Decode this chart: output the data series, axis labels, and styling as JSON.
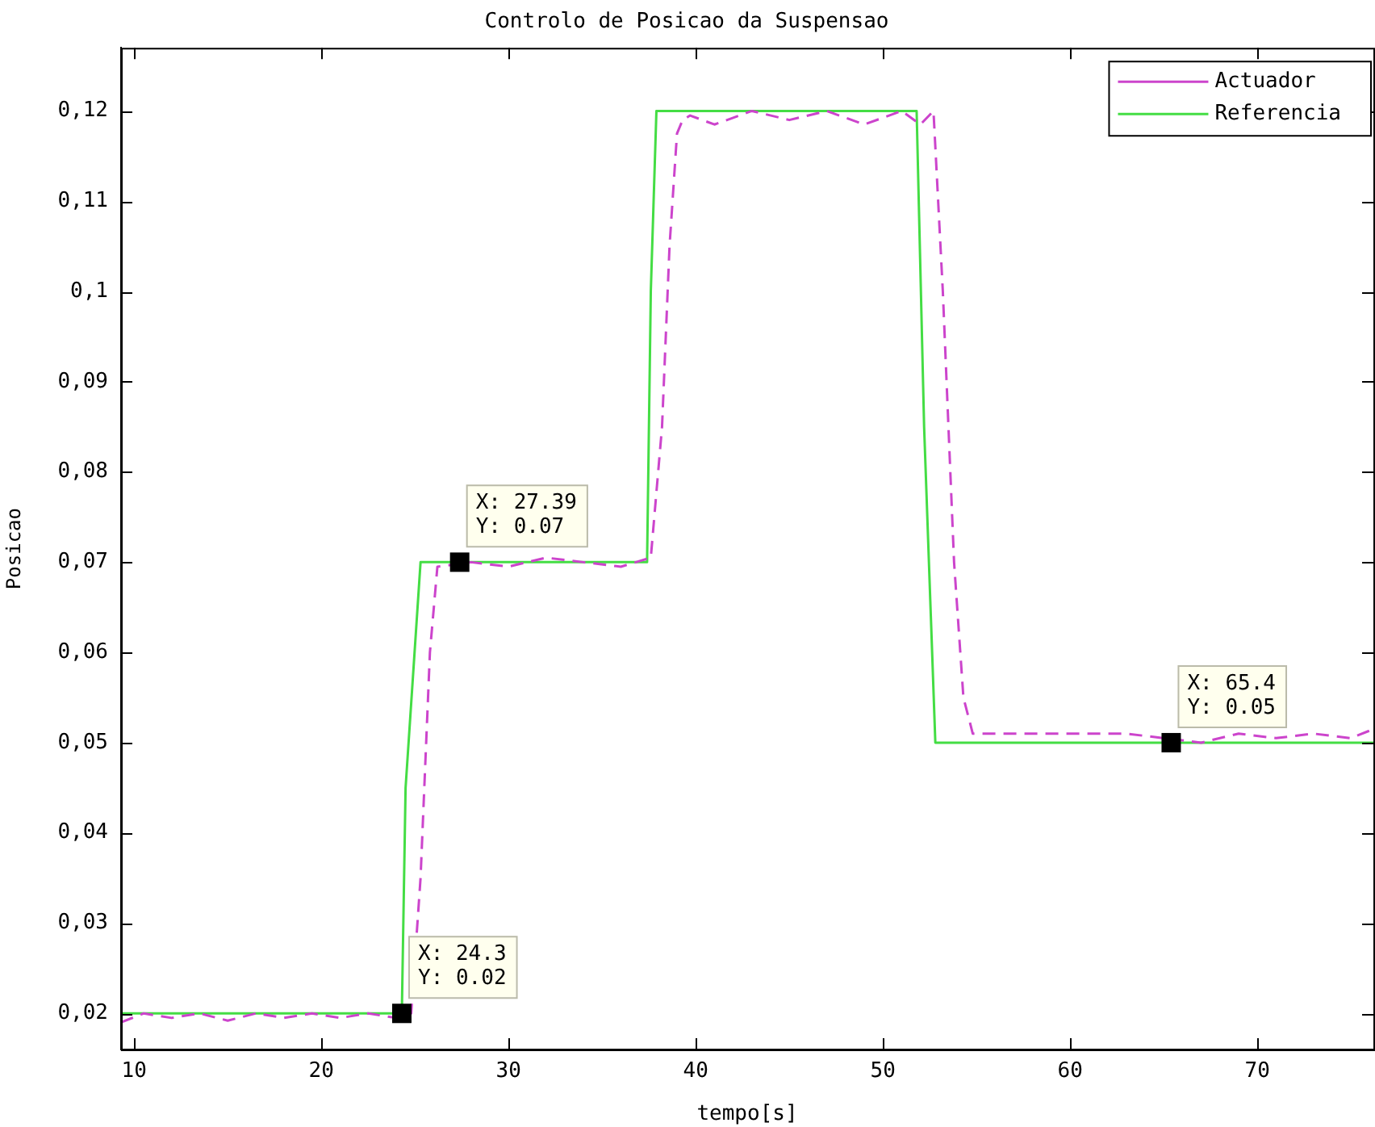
{
  "chart_data": {
    "type": "line",
    "title": "Controlo de Posicao da Suspensao",
    "xlabel": "tempo[s]",
    "ylabel": "Posicao",
    "xlim": [
      9.3,
      76.2
    ],
    "ylim": [
      0.016,
      0.127
    ],
    "xticks": [
      10,
      20,
      30,
      40,
      50,
      60,
      70
    ],
    "yticks": [
      {
        "value": 0.02,
        "label": "0,02"
      },
      {
        "value": 0.03,
        "label": "0,03"
      },
      {
        "value": 0.04,
        "label": "0,04"
      },
      {
        "value": 0.05,
        "label": "0,05"
      },
      {
        "value": 0.06,
        "label": "0,06"
      },
      {
        "value": 0.07,
        "label": "0,07"
      },
      {
        "value": 0.08,
        "label": "0,08"
      },
      {
        "value": 0.09,
        "label": "0,09"
      },
      {
        "value": 0.1,
        "label": "0,1"
      },
      {
        "value": 0.11,
        "label": "0,11"
      },
      {
        "value": 0.12,
        "label": "0,12"
      }
    ],
    "grid": false,
    "legend": "top right",
    "marker": "none",
    "series": [
      {
        "name": "Actuador",
        "color": "#cc44cc",
        "line_style": "dashed",
        "x": [
          9.3,
          10.5,
          12,
          13.5,
          15,
          16.5,
          18,
          19.5,
          21,
          22.5,
          24,
          24.8,
          25.3,
          25.8,
          26.2,
          28,
          30,
          32,
          34,
          36,
          36.8,
          37.6,
          38.2,
          38.6,
          39,
          39.3,
          39.7,
          41,
          43,
          45,
          47,
          49,
          51,
          52,
          52.7,
          53.2,
          53.8,
          54.3,
          54.8,
          57,
          60,
          63,
          65,
          67,
          69,
          71,
          73,
          75,
          76.2
        ],
        "values": [
          0.019,
          0.02,
          0.0195,
          0.02,
          0.0192,
          0.02,
          0.0195,
          0.02,
          0.0195,
          0.02,
          0.0195,
          0.02,
          0.035,
          0.06,
          0.0695,
          0.07,
          0.0695,
          0.0705,
          0.07,
          0.0695,
          0.07,
          0.0705,
          0.085,
          0.105,
          0.1175,
          0.119,
          0.1195,
          0.1185,
          0.12,
          0.119,
          0.12,
          0.1185,
          0.12,
          0.1185,
          0.12,
          0.1,
          0.07,
          0.055,
          0.051,
          0.051,
          0.051,
          0.051,
          0.0505,
          0.05,
          0.051,
          0.0505,
          0.051,
          0.0505,
          0.0515
        ]
      },
      {
        "name": "Referencia",
        "color": "#44dd44",
        "line_style": "solid",
        "x": [
          9.3,
          24.3,
          24.5,
          25.3,
          37.4,
          37.6,
          37.9,
          51.8,
          52.2,
          52.8,
          76.2
        ],
        "values": [
          0.02,
          0.02,
          0.045,
          0.07,
          0.07,
          0.1,
          0.12,
          0.12,
          0.085,
          0.05,
          0.05
        ]
      }
    ],
    "annotations": [
      {
        "text": "X: 24.3\nY: 0.02",
        "x": 24.3,
        "y": 0.02
      },
      {
        "text": "X: 27.39\nY: 0.07",
        "x": 27.39,
        "y": 0.07
      },
      {
        "text": "X: 65.4\nY: 0.05",
        "x": 65.4,
        "y": 0.05
      }
    ]
  }
}
